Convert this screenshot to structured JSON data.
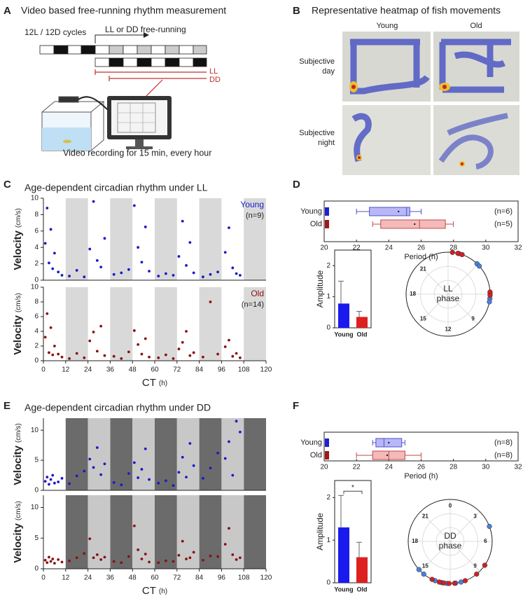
{
  "panel_labels": [
    "A",
    "B",
    "C",
    "D",
    "E",
    "F"
  ],
  "panel_a": {
    "title": "Video based free-running rhythm measurement",
    "entrainment_label": "12L / 12D cycles",
    "free_run_label": "LL or DD free-running",
    "conditions": [
      "LL",
      "DD"
    ],
    "caption": "Video recording for 15 min, every hour"
  },
  "panel_b": {
    "title": "Representative heatmap of fish movements",
    "columns": [
      "Young",
      "Old"
    ],
    "rows": [
      [
        "Subjective",
        "day"
      ],
      [
        "Subjective",
        "night"
      ]
    ]
  },
  "chart_data": [
    {
      "type": "scatter",
      "title": "Age-dependent circadian rhythm under LL",
      "ylabel": "Velocity",
      "yunit": "(cm/s)",
      "xlim": [
        0,
        120
      ],
      "ylim": [
        0,
        10
      ],
      "yticks": [
        0,
        2,
        4,
        6,
        8,
        10
      ],
      "shading": [
        {
          "color": "#d9d9d9",
          "intervals": [
            [
              12,
              24
            ],
            [
              36,
              48
            ],
            [
              60,
              72
            ],
            [
              84,
              96
            ],
            [
              108,
              120
            ]
          ]
        }
      ],
      "series": [
        {
          "name": "Young",
          "color": "#1a1acc",
          "x": [
            1,
            2,
            3,
            4,
            5,
            6,
            8,
            10,
            14,
            18,
            22,
            25,
            27,
            29,
            31,
            33,
            38,
            42,
            46,
            49,
            51,
            53,
            55,
            57,
            62,
            66,
            70,
            73,
            75,
            77,
            79,
            81,
            86,
            90,
            94,
            98,
            100,
            102,
            104,
            106
          ],
          "values": [
            4.5,
            8.8,
            2.1,
            6.2,
            1.4,
            3.3,
            1.0,
            0.6,
            0.5,
            1.2,
            0.4,
            3.8,
            9.6,
            2.4,
            1.6,
            5.1,
            0.7,
            0.9,
            1.3,
            9.1,
            4.0,
            2.2,
            6.5,
            1.1,
            0.5,
            0.8,
            0.6,
            2.9,
            7.2,
            1.8,
            4.6,
            0.9,
            0.4,
            0.7,
            1.0,
            3.4,
            6.4,
            1.5,
            0.8,
            0.6
          ]
        }
      ],
      "annotation": "(n=9)"
    },
    {
      "type": "scatter",
      "xlabel": "CT",
      "xunit": "(h)",
      "ylabel": "Velocity",
      "yunit": "(cm/s)",
      "xlim": [
        0,
        120
      ],
      "ylim": [
        0,
        10
      ],
      "yticks": [
        0,
        2,
        4,
        6,
        8,
        10
      ],
      "xticks": [
        0,
        12,
        24,
        36,
        48,
        60,
        72,
        84,
        96,
        108,
        120
      ],
      "shading": [
        {
          "color": "#d9d9d9",
          "intervals": [
            [
              12,
              24
            ],
            [
              36,
              48
            ],
            [
              60,
              72
            ],
            [
              84,
              96
            ],
            [
              108,
              120
            ]
          ]
        }
      ],
      "series": [
        {
          "name": "Old",
          "color": "#8b1010",
          "x": [
            1,
            2,
            3,
            4,
            5,
            6,
            8,
            10,
            14,
            18,
            22,
            25,
            27,
            29,
            31,
            33,
            38,
            42,
            46,
            49,
            51,
            53,
            55,
            57,
            62,
            66,
            70,
            73,
            75,
            77,
            79,
            81,
            86,
            90,
            94,
            98,
            100,
            102,
            104,
            106
          ],
          "values": [
            3.2,
            6.4,
            1.1,
            4.5,
            0.8,
            2.0,
            0.9,
            0.5,
            0.3,
            1.0,
            0.4,
            2.7,
            3.9,
            1.3,
            4.7,
            0.7,
            0.6,
            0.3,
            1.2,
            4.1,
            2.2,
            0.9,
            3.0,
            0.5,
            0.4,
            0.8,
            0.3,
            1.6,
            2.5,
            4.0,
            0.7,
            1.1,
            0.5,
            8.0,
            0.9,
            1.9,
            2.8,
            0.6,
            1.0,
            0.4
          ]
        }
      ],
      "annotation": "(n=14)"
    },
    {
      "type": "box",
      "xlabel": "Period (h)",
      "xlim": [
        20,
        32
      ],
      "xticks": [
        20,
        22,
        24,
        26,
        28,
        30,
        32
      ],
      "categories": [
        "Young",
        "Old"
      ],
      "whislo": [
        22,
        23
      ],
      "q1": [
        22.8,
        23.5
      ],
      "median": [
        25.1,
        25.9
      ],
      "q3": [
        25.3,
        27.5
      ],
      "whishi": [
        26,
        28
      ],
      "mean": [
        24.6,
        25.6
      ],
      "colors": [
        "#b8b8f8",
        "#f4baba"
      ],
      "edge_colors": [
        "#5050c8",
        "#c04848"
      ],
      "marker_colors": [
        "#2020d0",
        "#a01818"
      ],
      "annotations": [
        "(n=6)",
        "(n=5)"
      ]
    },
    {
      "type": "bar",
      "ylabel": "Amplitude",
      "categories": [
        "Young",
        "Old"
      ],
      "values": [
        0.78,
        0.35
      ],
      "errors": [
        0.72,
        0.18
      ],
      "colors": [
        "#1a1aee",
        "#dd2020"
      ],
      "ylim": [
        0,
        2.5
      ],
      "yticks": [
        0,
        1,
        2
      ]
    },
    {
      "type": "polar",
      "center_text": [
        "LL",
        "phase"
      ],
      "alim": [
        0,
        24
      ],
      "angle_ticks": [
        21,
        18,
        15,
        12,
        9
      ],
      "series": [
        {
          "color": "#4a7fd8",
          "values": [
            2.9,
            3.2,
            6.4,
            6.7,
            1.0,
            5.9
          ]
        },
        {
          "color": "#cc2222",
          "values": [
            0.9,
            1.3,
            5.8,
            6.1,
            0.4
          ]
        }
      ]
    },
    {
      "type": "scatter",
      "title": "Age-dependent circadian rhythm under DD",
      "ylabel": "Velocity",
      "yunit": "(cm/s)",
      "xlim": [
        0,
        120
      ],
      "ylim": [
        0,
        12
      ],
      "yticks": [
        0,
        5,
        10
      ],
      "shading": [
        {
          "color": "#6b6b6b",
          "intervals": [
            [
              12,
              24
            ],
            [
              36,
              48
            ],
            [
              60,
              72
            ],
            [
              84,
              96
            ],
            [
              108,
              120
            ]
          ]
        },
        {
          "color": "#c8c8c8",
          "intervals": [
            [
              24,
              36
            ],
            [
              48,
              60
            ],
            [
              72,
              84
            ],
            [
              96,
              108
            ]
          ]
        }
      ],
      "series": [
        {
          "color": "#1a1acc",
          "x": [
            1,
            2,
            3,
            4,
            5,
            6,
            8,
            10,
            14,
            18,
            22,
            25,
            27,
            29,
            31,
            33,
            38,
            42,
            46,
            49,
            51,
            53,
            55,
            57,
            62,
            66,
            70,
            73,
            75,
            77,
            79,
            81,
            86,
            90,
            94,
            98,
            100,
            102,
            104,
            106
          ],
          "values": [
            1.5,
            2.2,
            1.0,
            1.8,
            2.5,
            1.2,
            1.4,
            2.0,
            1.1,
            2.4,
            3.2,
            5.2,
            3.8,
            7.1,
            2.6,
            4.4,
            1.3,
            0.9,
            2.8,
            4.6,
            2.1,
            3.5,
            6.9,
            1.8,
            1.2,
            1.6,
            0.8,
            3.0,
            5.5,
            2.2,
            7.8,
            4.1,
            2.0,
            3.7,
            6.2,
            5.3,
            8.1,
            2.5,
            11.5,
            9.7
          ]
        }
      ]
    },
    {
      "type": "scatter",
      "xlabel": "CT",
      "xunit": "(h)",
      "ylabel": "Velocity",
      "yunit": "(cm/s)",
      "xlim": [
        0,
        120
      ],
      "ylim": [
        0,
        12
      ],
      "yticks": [
        0,
        5,
        10
      ],
      "xticks": [
        0,
        12,
        24,
        36,
        48,
        60,
        72,
        84,
        96,
        108,
        120
      ],
      "shading": [
        {
          "color": "#6b6b6b",
          "intervals": [
            [
              12,
              24
            ],
            [
              36,
              48
            ],
            [
              60,
              72
            ],
            [
              84,
              96
            ],
            [
              108,
              120
            ]
          ]
        },
        {
          "color": "#c8c8c8",
          "intervals": [
            [
              24,
              36
            ],
            [
              48,
              60
            ],
            [
              72,
              84
            ],
            [
              96,
              108
            ]
          ]
        }
      ],
      "series": [
        {
          "color": "#8b1010",
          "x": [
            1,
            2,
            3,
            4,
            5,
            6,
            8,
            10,
            14,
            18,
            22,
            25,
            27,
            29,
            31,
            33,
            38,
            42,
            46,
            49,
            51,
            53,
            55,
            57,
            62,
            66,
            70,
            73,
            75,
            77,
            79,
            81,
            86,
            90,
            94,
            98,
            100,
            102,
            104,
            106
          ],
          "values": [
            1.4,
            1.0,
            1.9,
            1.2,
            1.6,
            0.9,
            1.5,
            1.1,
            1.3,
            1.8,
            2.5,
            4.9,
            1.8,
            2.3,
            1.5,
            1.9,
            1.2,
            1.0,
            2.0,
            7.0,
            3.1,
            1.6,
            2.4,
            1.1,
            1.0,
            1.3,
            1.2,
            2.2,
            4.5,
            1.6,
            1.8,
            2.7,
            1.4,
            2.1,
            2.0,
            4.0,
            6.6,
            2.3,
            1.5,
            1.8
          ]
        }
      ]
    },
    {
      "type": "box",
      "xlabel": "Period (h)",
      "xlim": [
        20,
        32
      ],
      "xticks": [
        20,
        22,
        24,
        26,
        28,
        30,
        32
      ],
      "categories": [
        "Young",
        "Old"
      ],
      "whislo": [
        23,
        22
      ],
      "q1": [
        23.2,
        23
      ],
      "median": [
        23.7,
        24
      ],
      "q3": [
        24.8,
        25
      ],
      "whishi": [
        25,
        26
      ],
      "mean": [
        24,
        23.9
      ],
      "colors": [
        "#b8b8f8",
        "#f4baba"
      ],
      "edge_colors": [
        "#5050c8",
        "#c04848"
      ],
      "marker_colors": [
        "#2020d0",
        "#a01818"
      ],
      "annotations": [
        "(n=8)",
        "(n=8)"
      ]
    },
    {
      "type": "bar",
      "ylabel": "Amplitude",
      "categories": [
        "Young",
        "Old"
      ],
      "values": [
        1.3,
        0.6
      ],
      "errors": [
        0.75,
        0.35
      ],
      "colors": [
        "#1a1aee",
        "#dd2020"
      ],
      "ylim": [
        0,
        2.4
      ],
      "yticks": [
        0,
        1,
        2
      ],
      "significance": "*"
    },
    {
      "type": "polar",
      "center_text": [
        "DD",
        "phase"
      ],
      "alim": [
        0,
        24
      ],
      "angle_ticks": [
        0,
        3,
        6,
        9,
        15,
        18,
        21
      ],
      "series": [
        {
          "color": "#4a7fd8",
          "values": [
            4.6,
            11.5,
            12.3,
            12.8,
            13.4,
            14.6,
            15.2,
            11.0
          ]
        },
        {
          "color": "#cc2222",
          "values": [
            8.3,
            9.4,
            10.6,
            11.6,
            12.1,
            12.6,
            13.0,
            13.7
          ]
        }
      ]
    }
  ]
}
